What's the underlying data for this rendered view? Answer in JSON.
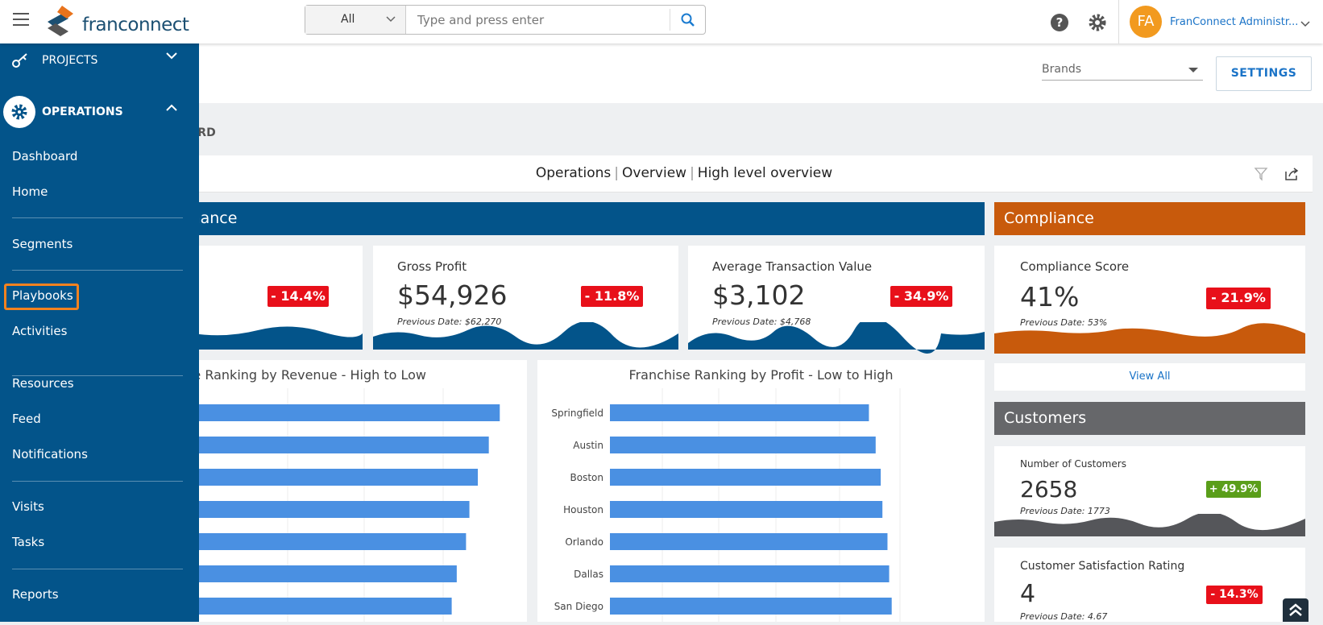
{
  "header": {
    "logo": "franconnect",
    "search_scope": "All",
    "search_placeholder": "Type and press enter",
    "avatar": "FA",
    "user": "FranConnect Administr..."
  },
  "sidebar": {
    "projects": "PROJECTS",
    "operations": "OPERATIONS",
    "items": [
      "Dashboard",
      "Home",
      "Segments",
      "Playbooks",
      "Activities",
      "Resources",
      "Feed",
      "Notifications",
      "Visits",
      "Tasks",
      "Reports"
    ]
  },
  "toolbar": {
    "brands": "Brands",
    "settings": "SETTINGS"
  },
  "breadcrumb": "DASHBOARD",
  "panel": {
    "title_1": "Operations",
    "title_2": "Overview",
    "title_3": "High level overview"
  },
  "performance": {
    "title": "Performance",
    "cards": [
      {
        "badge": "- 14.4%"
      },
      {
        "label": "Gross Profit",
        "value": "$54,926",
        "previous": "Previous Date: $62,270",
        "badge": "- 11.8%"
      },
      {
        "label": "Average Transaction Value",
        "value": "$3,102",
        "previous": "Previous Date: $4,768",
        "badge": "- 34.9%"
      }
    ]
  },
  "compliance": {
    "title": "Compliance",
    "label": "Compliance Score",
    "value": "41%",
    "previous": "Previous Date: 53%",
    "badge": "- 21.9%",
    "view_all": "View All"
  },
  "customers": {
    "title": "Customers",
    "cards": [
      {
        "label": "Number of Customers",
        "value": "2658",
        "previous": "Previous Date: 1773",
        "badge": "+ 49.9%"
      },
      {
        "label": "Customer Satisfaction Rating",
        "value": "4",
        "previous": "Previous Date: 4.67",
        "badge": "- 14.3%"
      }
    ]
  },
  "revenue_chart": {
    "title": "Franchise Ranking by Revenue - High to Low",
    "values": [
      474,
      461,
      448,
      438,
      434,
      423,
      417
    ],
    "color": "#4a90e2"
  },
  "profit_chart": {
    "title": "Franchise Ranking by Profit - Low to High",
    "categories": [
      "Springfield",
      "Austin",
      "Boston",
      "Houston",
      "Orlando",
      "Dallas",
      "San Diego"
    ],
    "values": [
      307,
      315,
      321,
      323,
      329,
      331,
      334
    ],
    "color": "#4a90e2"
  }
}
